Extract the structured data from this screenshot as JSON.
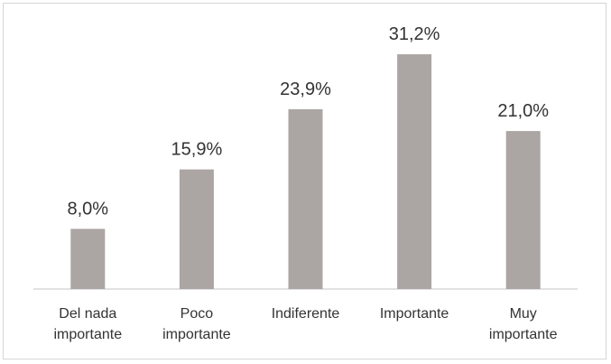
{
  "chart_data": {
    "type": "bar",
    "categories": [
      [
        "Del nada",
        "importante"
      ],
      [
        "Poco",
        "importante"
      ],
      [
        "Indiferente"
      ],
      [
        "Importante"
      ],
      [
        "Muy",
        "importante"
      ]
    ],
    "values": [
      8.0,
      15.9,
      23.9,
      31.2,
      21.0
    ],
    "data_labels": [
      "8,0%",
      "15,9%",
      "23,9%",
      "31,2%",
      "21,0%"
    ],
    "ylim": [
      0,
      35
    ],
    "grid": false,
    "bar_color": "#aba5a3",
    "axis_color": "#d9d9d9",
    "text_color": "#333333"
  }
}
